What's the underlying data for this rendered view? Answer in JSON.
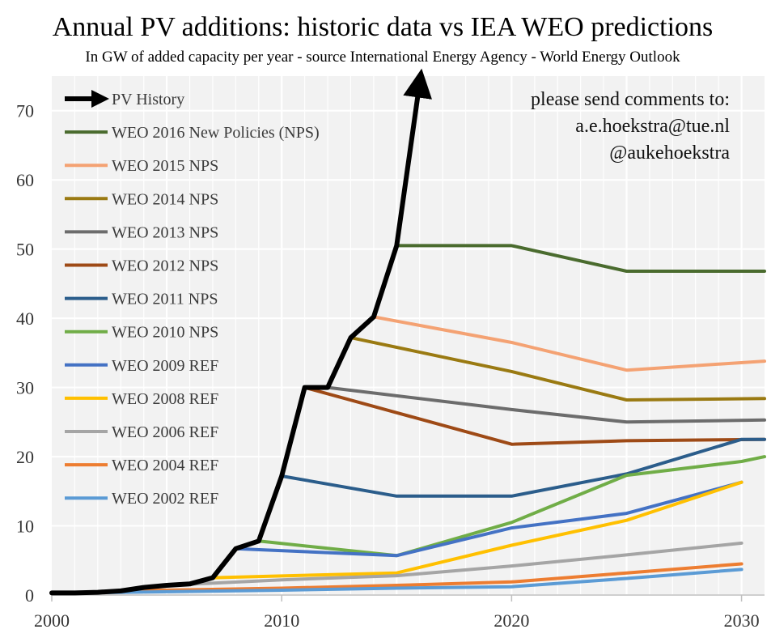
{
  "chart_data": {
    "type": "line",
    "title": "Annual PV additions: historic data vs IEA WEO predictions",
    "subtitle": "In GW of added capacity per year - source International Energy Agency - World Energy Outlook",
    "xlabel": "",
    "ylabel": "",
    "xlim": [
      2000,
      2031
    ],
    "ylim": [
      0,
      75
    ],
    "x_ticks": [
      2000,
      2010,
      2020,
      2030
    ],
    "y_ticks": [
      0,
      10,
      20,
      30,
      40,
      50,
      60,
      70
    ],
    "grid": true,
    "legend_position": "top-left",
    "annotation": [
      "please send comments to:",
      "a.e.hoekstra@tue.nl",
      "@aukehoekstra"
    ],
    "series": [
      {
        "name": "PV History",
        "color": "#000000",
        "arrow": true,
        "x": [
          2000,
          2001,
          2002,
          2003,
          2004,
          2005,
          2006,
          2007,
          2008,
          2009,
          2010,
          2011,
          2012,
          2013,
          2014,
          2015,
          2016
        ],
        "y": [
          0.3,
          0.3,
          0.4,
          0.6,
          1.1,
          1.4,
          1.6,
          2.5,
          6.7,
          7.8,
          17.2,
          30.0,
          30.0,
          37.2,
          40.2,
          50.5,
          74.0
        ]
      },
      {
        "name": "WEO 2016 New Policies (NPS)",
        "color": "#4a6b2e",
        "x": [
          2015,
          2020,
          2025,
          2031
        ],
        "y": [
          50.5,
          50.5,
          46.8,
          46.8
        ]
      },
      {
        "name": "WEO 2015 NPS",
        "color": "#f4a273",
        "x": [
          2014,
          2020,
          2025,
          2031
        ],
        "y": [
          40.2,
          36.5,
          32.5,
          33.8
        ]
      },
      {
        "name": "WEO 2014 NPS",
        "color": "#9a7a12",
        "x": [
          2013,
          2020,
          2025,
          2031
        ],
        "y": [
          37.2,
          32.3,
          28.2,
          28.4
        ]
      },
      {
        "name": "WEO 2013 NPS",
        "color": "#6c6c6c",
        "x": [
          2012,
          2020,
          2025,
          2031
        ],
        "y": [
          30.0,
          26.8,
          25.0,
          25.3
        ]
      },
      {
        "name": "WEO 2012 NPS",
        "color": "#9e4a16",
        "x": [
          2011,
          2020,
          2025,
          2031
        ],
        "y": [
          30.0,
          21.8,
          22.3,
          22.5
        ]
      },
      {
        "name": "WEO 2011 NPS",
        "color": "#2b5d8b",
        "x": [
          2010,
          2015,
          2020,
          2025,
          2030,
          2031
        ],
        "y": [
          17.2,
          14.3,
          14.3,
          17.5,
          22.5,
          22.5
        ]
      },
      {
        "name": "WEO 2010 NPS",
        "color": "#70ad47",
        "x": [
          2009,
          2015,
          2020,
          2025,
          2030,
          2031
        ],
        "y": [
          7.8,
          5.7,
          10.5,
          17.3,
          19.3,
          20.0
        ]
      },
      {
        "name": "WEO 2009 REF",
        "color": "#4472c4",
        "x": [
          2008,
          2015,
          2020,
          2025,
          2030
        ],
        "y": [
          6.7,
          5.7,
          9.7,
          11.8,
          16.3
        ]
      },
      {
        "name": "WEO 2008 REF",
        "color": "#ffc000",
        "x": [
          2007,
          2015,
          2020,
          2025,
          2030
        ],
        "y": [
          2.5,
          3.2,
          7.2,
          10.8,
          16.3
        ]
      },
      {
        "name": "WEO 2006 REF",
        "color": "#a5a5a5",
        "x": [
          2005,
          2010,
          2015,
          2020,
          2025,
          2030
        ],
        "y": [
          1.4,
          2.2,
          2.8,
          4.2,
          5.8,
          7.5
        ]
      },
      {
        "name": "WEO 2004 REF",
        "color": "#ed7d31",
        "x": [
          2003,
          2010,
          2015,
          2020,
          2025,
          2030
        ],
        "y": [
          0.6,
          1.0,
          1.4,
          1.9,
          3.2,
          4.5
        ]
      },
      {
        "name": "WEO 2002 REF",
        "color": "#5b9bd5",
        "x": [
          2001,
          2010,
          2015,
          2020,
          2025,
          2030
        ],
        "y": [
          0.3,
          0.7,
          1.0,
          1.2,
          2.4,
          3.7
        ]
      }
    ]
  }
}
